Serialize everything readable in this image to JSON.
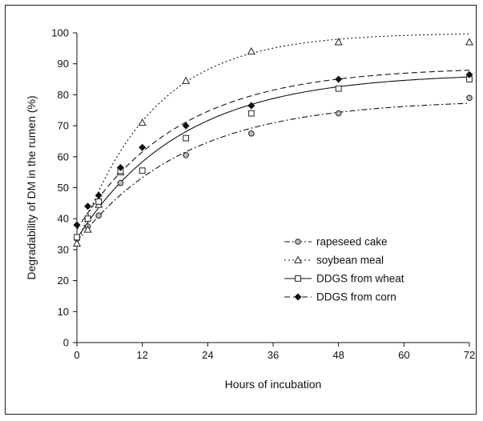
{
  "chart_data": {
    "type": "scatter",
    "title": "",
    "xlabel": "Hours of incubation",
    "ylabel": "Degradability of DM in the rumen (%)",
    "xlim": [
      0,
      72
    ],
    "ylim": [
      0,
      100
    ],
    "xticks": [
      "0",
      "12",
      "24",
      "36",
      "48",
      "60",
      "72"
    ],
    "yticks": [
      "0",
      "10",
      "20",
      "30",
      "40",
      "50",
      "60",
      "70",
      "80",
      "90",
      "100"
    ],
    "grid": false,
    "legend_position": "center-right",
    "series": [
      {
        "name": "rapeseed cake",
        "marker": "circle",
        "line_style": "dash-dot",
        "x": [
          0,
          2,
          4,
          8,
          12,
          20,
          32,
          48,
          72
        ],
        "y": [
          33.5,
          37.5,
          41,
          51.5,
          55.5,
          60.5,
          67.5,
          74,
          79
        ],
        "fit": {
          "a": 32.5,
          "b": 46,
          "c": 0.05
        }
      },
      {
        "name": "soybean meal",
        "marker": "triangle",
        "line_style": "dotted",
        "x": [
          0,
          2,
          4,
          8,
          12,
          20,
          32,
          48,
          72
        ],
        "y": [
          32,
          36.5,
          44.5,
          55,
          71,
          84.5,
          94,
          97,
          97
        ],
        "fit": {
          "a": 31.5,
          "b": 68.5,
          "c": 0.073
        }
      },
      {
        "name": "DDGS from wheat",
        "marker": "square",
        "line_style": "solid",
        "x": [
          0,
          2,
          4,
          8,
          12,
          20,
          32,
          48,
          72
        ],
        "y": [
          34,
          40,
          45.5,
          55.5,
          55.5,
          66,
          74,
          82,
          85
        ],
        "fit": {
          "a": 33.5,
          "b": 53.5,
          "c": 0.052
        }
      },
      {
        "name": "DDGS from corn",
        "marker": "diamond",
        "line_style": "dashed",
        "x": [
          0,
          2,
          4,
          8,
          12,
          20,
          32,
          48,
          72
        ],
        "y": [
          38,
          44,
          47.5,
          56.5,
          63,
          70,
          76.5,
          85,
          86.5
        ],
        "fit": {
          "a": 36.5,
          "b": 52.5,
          "c": 0.054
        }
      }
    ]
  }
}
